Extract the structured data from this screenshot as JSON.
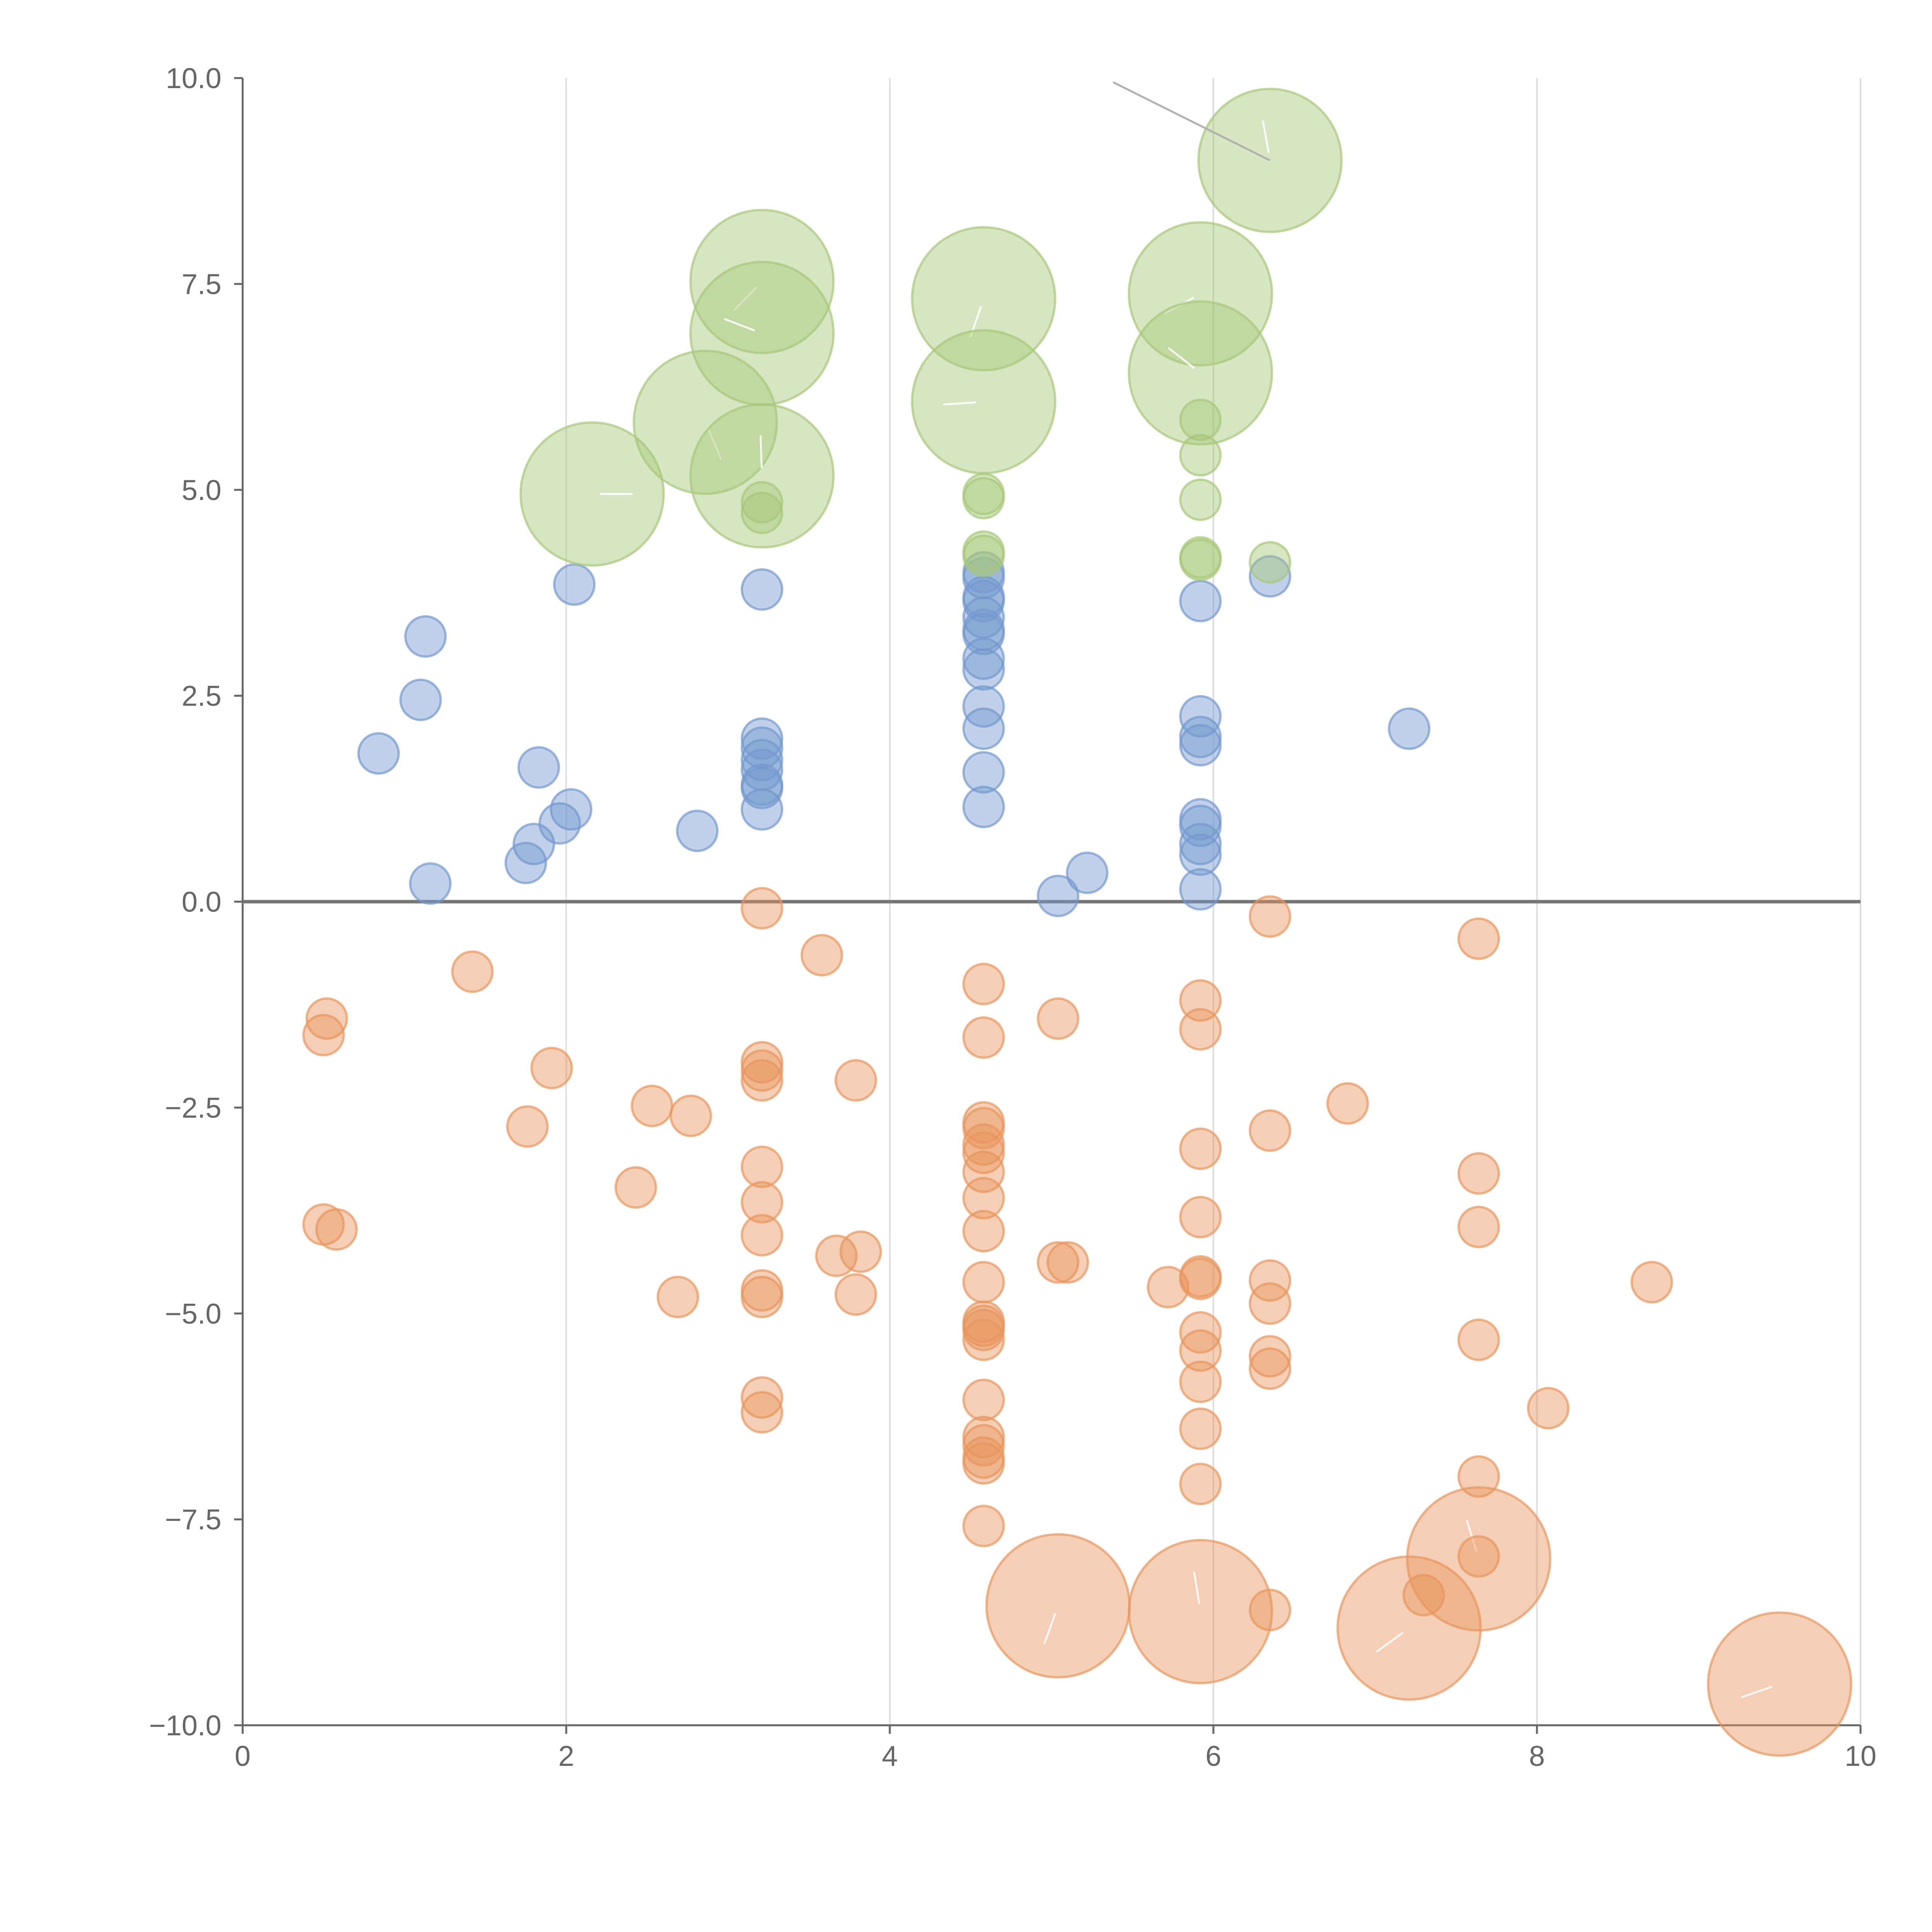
{
  "chart_data": {
    "type": "scatter",
    "title": "",
    "xlabel": "",
    "ylabel": "",
    "xlim": [
      0,
      10
    ],
    "ylim": [
      -10,
      10
    ],
    "x_ticks": [
      0,
      2,
      4,
      6,
      8,
      10
    ],
    "x_tick_labels": [
      "0",
      "2",
      "4",
      "6",
      "8",
      "10"
    ],
    "y_ticks": [
      10,
      7.5,
      5,
      2.5,
      0,
      -2.5,
      -5,
      -7.5,
      -10
    ],
    "y_tick_labels": [
      "10.0",
      "7.5",
      "5.0",
      "2.5",
      "0.0",
      "−2.5",
      "−5.0",
      "−7.5",
      "−10.0"
    ],
    "grid": "vertical",
    "zero_line": 0,
    "legend": "none",
    "colors": {
      "blue": "#7399cf",
      "green": "#a6c878",
      "orange": "#e8955c"
    },
    "series": [
      {
        "name": "blue",
        "color": "#7399cf",
        "points": [
          [
            0.84,
            1.8
          ],
          [
            1.1,
            2.45
          ],
          [
            1.13,
            3.22
          ],
          [
            1.16,
            0.22
          ],
          [
            1.75,
            0.47
          ],
          [
            1.8,
            0.7
          ],
          [
            1.83,
            1.63
          ],
          [
            1.96,
            0.95
          ],
          [
            2.03,
            1.12
          ],
          [
            2.05,
            3.85
          ],
          [
            2.81,
            0.86
          ],
          [
            3.21,
            3.79
          ],
          [
            3.21,
            1.98
          ],
          [
            3.21,
            1.87
          ],
          [
            3.21,
            1.72
          ],
          [
            3.21,
            1.6
          ],
          [
            3.21,
            1.42
          ],
          [
            3.21,
            1.38
          ],
          [
            3.21,
            1.12
          ],
          [
            4.58,
            4.0
          ],
          [
            4.58,
            3.93
          ],
          [
            4.58,
            3.7
          ],
          [
            4.58,
            3.65
          ],
          [
            4.58,
            3.45
          ],
          [
            4.58,
            3.3
          ],
          [
            4.58,
            3.25
          ],
          [
            4.58,
            2.95
          ],
          [
            4.58,
            2.82
          ],
          [
            4.58,
            2.37
          ],
          [
            4.58,
            2.1
          ],
          [
            4.58,
            1.57
          ],
          [
            4.58,
            1.15
          ],
          [
            5.04,
            0.07
          ],
          [
            5.22,
            0.35
          ],
          [
            5.92,
            3.65
          ],
          [
            5.92,
            2.25
          ],
          [
            5.92,
            2.0
          ],
          [
            5.92,
            1.9
          ],
          [
            5.92,
            1.0
          ],
          [
            5.92,
            0.92
          ],
          [
            5.92,
            0.7
          ],
          [
            5.92,
            0.57
          ],
          [
            5.92,
            0.15
          ],
          [
            6.35,
            3.95
          ],
          [
            7.21,
            2.1
          ]
        ],
        "sizes": [
          1,
          1,
          1,
          1,
          1,
          1,
          1,
          1,
          1,
          1,
          1,
          1,
          1,
          1,
          1,
          1,
          1,
          1,
          1,
          1,
          1,
          1,
          1,
          1,
          1,
          1,
          1,
          1,
          1,
          1,
          1,
          1,
          1,
          1,
          1,
          1,
          1,
          1,
          1,
          1,
          1,
          1,
          1,
          1,
          1
        ]
      },
      {
        "name": "green",
        "color": "#a6c878",
        "points": [
          [
            2.16,
            4.95
          ],
          [
            2.86,
            5.82
          ],
          [
            3.21,
            7.53
          ],
          [
            3.21,
            6.9
          ],
          [
            3.21,
            5.17
          ],
          [
            3.21,
            4.85
          ],
          [
            3.21,
            4.72
          ],
          [
            4.58,
            7.32
          ],
          [
            4.58,
            6.07
          ],
          [
            4.58,
            4.95
          ],
          [
            4.58,
            4.9
          ],
          [
            4.58,
            4.25
          ],
          [
            4.58,
            4.2
          ],
          [
            5.92,
            7.38
          ],
          [
            5.92,
            6.42
          ],
          [
            5.92,
            5.85
          ],
          [
            5.92,
            5.42
          ],
          [
            5.92,
            4.88
          ],
          [
            5.92,
            4.18
          ],
          [
            5.92,
            4.15
          ],
          [
            6.35,
            9.0
          ],
          [
            6.35,
            4.12
          ]
        ],
        "sizes": [
          3,
          3,
          3,
          3,
          3,
          1,
          1,
          3,
          3,
          1,
          1,
          1,
          1,
          3,
          3,
          1,
          1,
          1,
          1,
          1,
          3,
          1
        ]
      },
      {
        "name": "orange",
        "color": "#e8955c",
        "points": [
          [
            0.5,
            -1.62
          ],
          [
            0.52,
            -1.42
          ],
          [
            0.5,
            -3.92
          ],
          [
            0.58,
            -3.98
          ],
          [
            1.42,
            -0.85
          ],
          [
            1.76,
            -2.73
          ],
          [
            1.91,
            -2.02
          ],
          [
            2.43,
            -3.47
          ],
          [
            2.53,
            -2.48
          ],
          [
            2.69,
            -4.8
          ],
          [
            2.77,
            -2.6
          ],
          [
            3.21,
            -0.08
          ],
          [
            3.21,
            -1.95
          ],
          [
            3.21,
            -2.05
          ],
          [
            3.21,
            -2.17
          ],
          [
            3.21,
            -3.22
          ],
          [
            3.21,
            -3.65
          ],
          [
            3.21,
            -4.05
          ],
          [
            3.21,
            -4.72
          ],
          [
            3.21,
            -4.8
          ],
          [
            3.21,
            -6.02
          ],
          [
            3.21,
            -6.2
          ],
          [
            3.58,
            -0.65
          ],
          [
            3.67,
            -4.3
          ],
          [
            3.79,
            -2.17
          ],
          [
            3.79,
            -4.77
          ],
          [
            3.82,
            -4.25
          ],
          [
            4.58,
            -1.0
          ],
          [
            4.58,
            -1.65
          ],
          [
            4.58,
            -2.68
          ],
          [
            4.58,
            -2.75
          ],
          [
            4.58,
            -2.95
          ],
          [
            4.58,
            -3.05
          ],
          [
            4.58,
            -3.28
          ],
          [
            4.58,
            -3.6
          ],
          [
            4.58,
            -4.0
          ],
          [
            4.58,
            -4.62
          ],
          [
            4.58,
            -5.1
          ],
          [
            4.58,
            -5.15
          ],
          [
            4.58,
            -5.2
          ],
          [
            4.58,
            -5.32
          ],
          [
            4.58,
            -6.05
          ],
          [
            4.58,
            -6.5
          ],
          [
            4.58,
            -6.6
          ],
          [
            4.58,
            -6.75
          ],
          [
            4.58,
            -6.82
          ],
          [
            4.58,
            -7.58
          ],
          [
            5.04,
            -1.42
          ],
          [
            5.04,
            -4.38
          ],
          [
            5.1,
            -4.38
          ],
          [
            5.04,
            -8.55
          ],
          [
            5.72,
            -4.68
          ],
          [
            5.92,
            -1.2
          ],
          [
            5.92,
            -1.55
          ],
          [
            5.92,
            -3.0
          ],
          [
            5.92,
            -3.83
          ],
          [
            5.92,
            -4.55
          ],
          [
            5.92,
            -4.58
          ],
          [
            5.92,
            -5.23
          ],
          [
            5.92,
            -5.45
          ],
          [
            5.92,
            -5.83
          ],
          [
            5.92,
            -6.4
          ],
          [
            5.92,
            -7.07
          ],
          [
            5.92,
            -8.62
          ],
          [
            6.35,
            -0.18
          ],
          [
            6.35,
            -2.78
          ],
          [
            6.35,
            -4.6
          ],
          [
            6.35,
            -4.88
          ],
          [
            6.35,
            -5.52
          ],
          [
            6.35,
            -5.67
          ],
          [
            6.35,
            -8.6
          ],
          [
            6.83,
            -2.45
          ],
          [
            7.21,
            -8.82
          ],
          [
            7.3,
            -8.42
          ],
          [
            7.64,
            -0.45
          ],
          [
            7.64,
            -3.3
          ],
          [
            7.64,
            -3.95
          ],
          [
            7.64,
            -5.32
          ],
          [
            7.64,
            -6.98
          ],
          [
            7.64,
            -7.98
          ],
          [
            7.64,
            -7.95
          ],
          [
            8.07,
            -6.15
          ],
          [
            8.71,
            -4.62
          ],
          [
            9.5,
            -9.5
          ]
        ],
        "sizes": [
          1,
          1,
          1,
          1,
          1,
          1,
          1,
          1,
          1,
          1,
          1,
          1,
          1,
          1,
          1,
          1,
          1,
          1,
          1,
          1,
          1,
          1,
          1,
          1,
          1,
          1,
          1,
          1,
          1,
          1,
          1,
          1,
          1,
          1,
          1,
          1,
          1,
          1,
          1,
          1,
          1,
          1,
          1,
          1,
          1,
          1,
          1,
          1,
          1,
          1,
          3,
          1,
          1,
          1,
          1,
          1,
          1,
          1,
          1,
          1,
          1,
          1,
          1,
          3,
          1,
          1,
          1,
          1,
          1,
          1,
          1,
          1,
          3,
          1,
          1,
          1,
          1,
          1,
          1,
          3,
          1,
          1,
          1,
          3
        ]
      }
    ]
  }
}
